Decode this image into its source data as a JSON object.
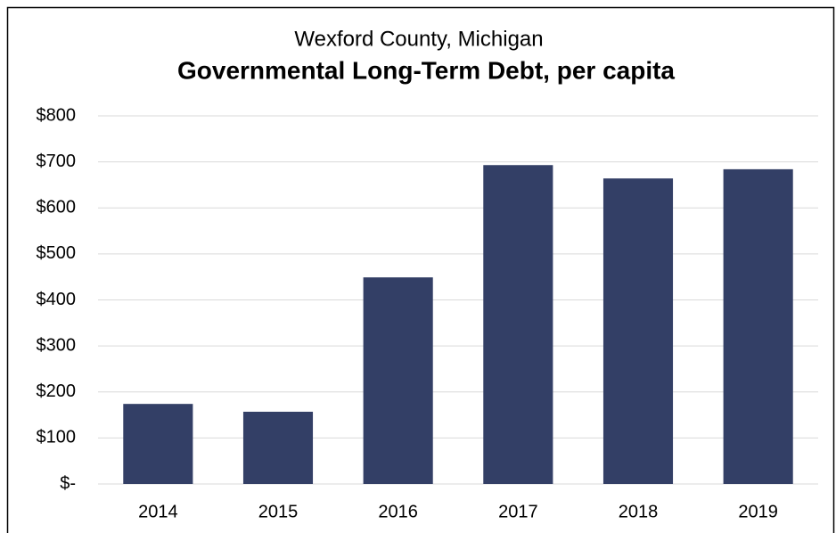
{
  "chart_data": {
    "type": "bar",
    "subtitle": "Wexford County, Michigan",
    "title": "Governmental Long-Term Debt, per capita",
    "categories": [
      "2014",
      "2015",
      "2016",
      "2017",
      "2018",
      "2019"
    ],
    "values": [
      174,
      157,
      449,
      693,
      664,
      684
    ],
    "color": "#333f66",
    "ylim": [
      0,
      800
    ],
    "yticks": [
      {
        "value": 0,
        "label": "$-"
      },
      {
        "value": 100,
        "label": "$100"
      },
      {
        "value": 200,
        "label": "$200"
      },
      {
        "value": 300,
        "label": "$300"
      },
      {
        "value": 400,
        "label": "$400"
      },
      {
        "value": 500,
        "label": "$500"
      },
      {
        "value": 600,
        "label": "$600"
      },
      {
        "value": 700,
        "label": "$700"
      },
      {
        "value": 800,
        "label": "$800"
      }
    ],
    "grid": true
  }
}
